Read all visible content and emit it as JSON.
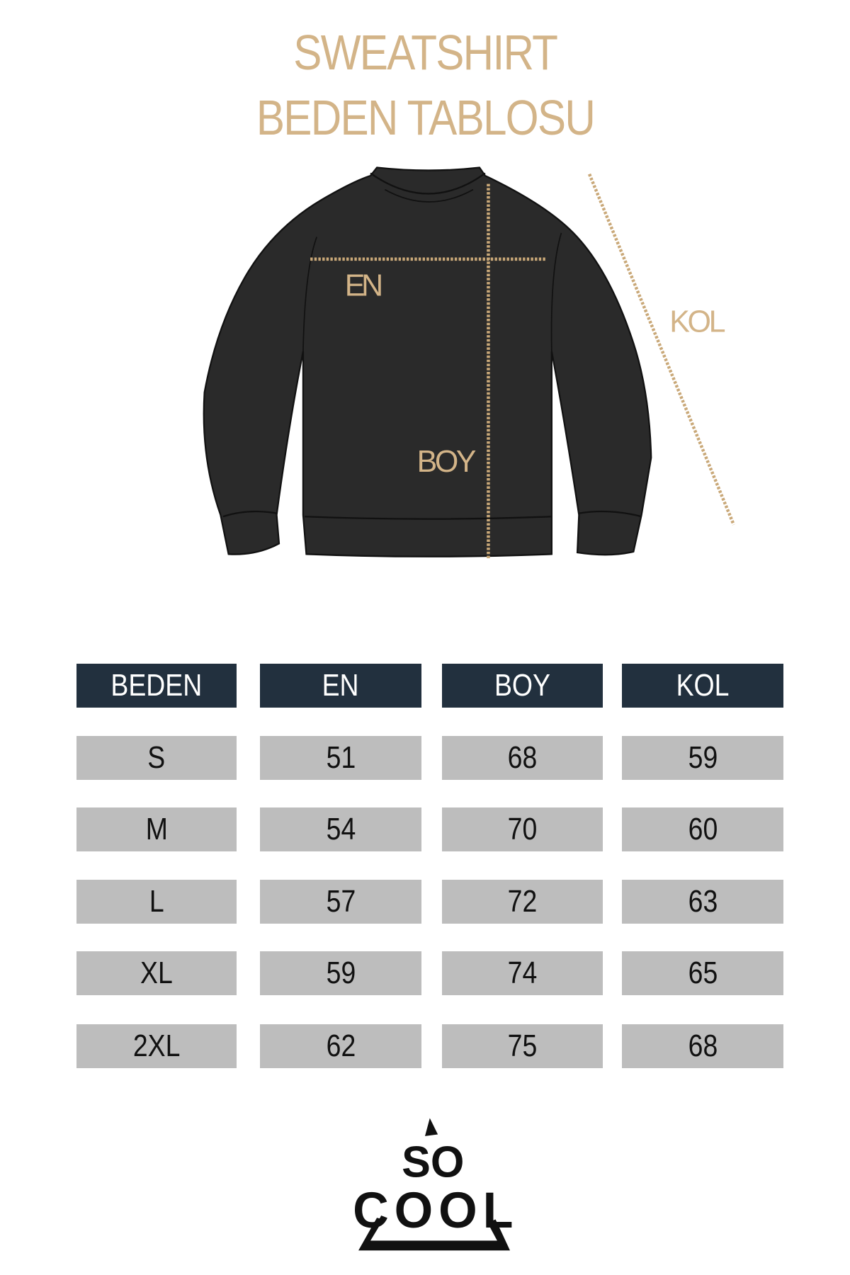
{
  "title": {
    "line1": "SWEATSHIRT",
    "line2": "BEDEN TABLOSU"
  },
  "diagram": {
    "en_label": "EN",
    "boy_label": "BOY",
    "kol_label": "KOL"
  },
  "table": {
    "headers": [
      "BEDEN",
      "EN",
      "BOY",
      "KOL"
    ],
    "rows": [
      [
        "S",
        "51",
        "68",
        "59"
      ],
      [
        "M",
        "54",
        "70",
        "60"
      ],
      [
        "L",
        "57",
        "72",
        "63"
      ],
      [
        "XL",
        "59",
        "74",
        "65"
      ],
      [
        "2XL",
        "62",
        "75",
        "68"
      ]
    ]
  },
  "logo": {
    "text": "SO COOL"
  },
  "colors": {
    "accent": "#d3b488",
    "header_bg": "#22303e",
    "cell_bg": "#bdbdbd",
    "garment": "#2a2a2a"
  }
}
